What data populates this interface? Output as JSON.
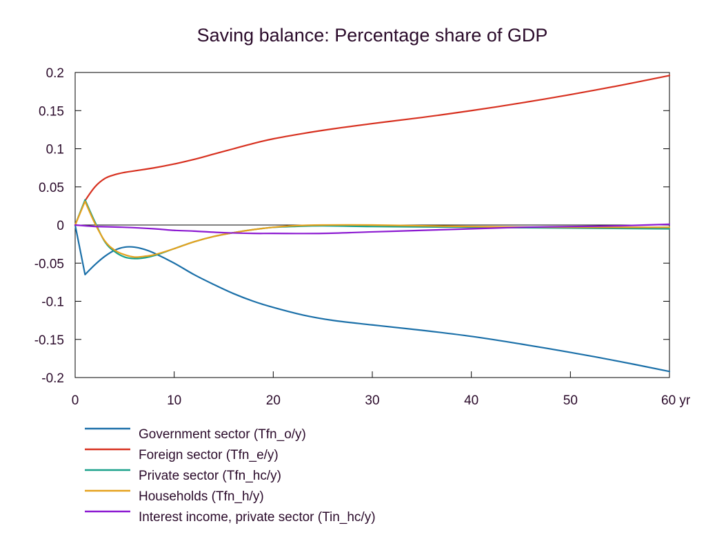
{
  "chart_data": {
    "type": "line",
    "title": "Saving balance: Percentage share of GDP",
    "xlim": [
      0,
      60
    ],
    "ylim": [
      -0.2,
      0.2
    ],
    "xticks": [
      0,
      10,
      20,
      30,
      40,
      50,
      60
    ],
    "xtick_labels": [
      "0",
      "10",
      "20",
      "30",
      "40",
      "50",
      "60 yr"
    ],
    "yticks": [
      0.2,
      0.15,
      0.1,
      0.05,
      0,
      -0.05,
      -0.1,
      -0.15,
      -0.2
    ],
    "ytick_labels": [
      "0.2",
      "0.15",
      "0.1",
      "0.05",
      "0",
      "-0.05",
      "-0.1",
      "-0.15",
      "-0.2"
    ],
    "grid": false,
    "legend_position": "bottom",
    "series": [
      {
        "name": "Government sector (Tfn_o/y)",
        "color": "#1a6fa8",
        "x": [
          0,
          1,
          2,
          3,
          4,
          5,
          6,
          7,
          8,
          10,
          12,
          14,
          16,
          18,
          20,
          23,
          26,
          30,
          35,
          40,
          45,
          50,
          55,
          60
        ],
        "y": [
          0,
          -0.065,
          -0.052,
          -0.041,
          -0.033,
          -0.029,
          -0.029,
          -0.032,
          -0.037,
          -0.05,
          -0.065,
          -0.078,
          -0.09,
          -0.1,
          -0.108,
          -0.118,
          -0.125,
          -0.131,
          -0.138,
          -0.146,
          -0.156,
          -0.167,
          -0.179,
          -0.192
        ]
      },
      {
        "name": "Foreign sector (Tfn_e/y)",
        "color": "#d7301f",
        "x": [
          0,
          1,
          2,
          3,
          4,
          5,
          6,
          8,
          10,
          12,
          14,
          16,
          18,
          20,
          23,
          26,
          30,
          35,
          40,
          45,
          50,
          55,
          60
        ],
        "y": [
          0,
          0.032,
          0.05,
          0.061,
          0.066,
          0.069,
          0.071,
          0.075,
          0.08,
          0.086,
          0.093,
          0.1,
          0.107,
          0.113,
          0.12,
          0.126,
          0.133,
          0.141,
          0.15,
          0.16,
          0.171,
          0.183,
          0.196
        ]
      },
      {
        "name": "Private sector (Tfn_hc/y)",
        "color": "#18a08a",
        "x": [
          0,
          1,
          2,
          3,
          4,
          5,
          6,
          7,
          8,
          10,
          12,
          14,
          16,
          18,
          20,
          22,
          25,
          30,
          40,
          50,
          60
        ],
        "y": [
          0,
          0.033,
          0.004,
          -0.022,
          -0.035,
          -0.042,
          -0.044,
          -0.043,
          -0.04,
          -0.031,
          -0.022,
          -0.015,
          -0.01,
          -0.006,
          -0.003,
          -0.002,
          -0.001,
          -0.002,
          -0.003,
          -0.004,
          -0.005
        ]
      },
      {
        "name": "Households (Tfn_h/y)",
        "color": "#e5a11c",
        "x": [
          0,
          1,
          2,
          3,
          4,
          5,
          6,
          7,
          8,
          10,
          12,
          14,
          16,
          18,
          20,
          22,
          25,
          30,
          40,
          50,
          60
        ],
        "y": [
          0,
          0.031,
          0.002,
          -0.021,
          -0.033,
          -0.039,
          -0.042,
          -0.041,
          -0.039,
          -0.031,
          -0.022,
          -0.015,
          -0.01,
          -0.006,
          -0.003,
          -0.001,
          0,
          0,
          -0.002,
          -0.003,
          -0.003
        ]
      },
      {
        "name": "Interest income, private sector (Tin_hc/y)",
        "color": "#8c1ad1",
        "x": [
          0,
          2,
          5,
          8,
          10,
          12,
          15,
          18,
          20,
          25,
          30,
          35,
          40,
          45,
          50,
          55,
          60
        ],
        "y": [
          0,
          -0.002,
          -0.003,
          -0.005,
          -0.007,
          -0.008,
          -0.01,
          -0.011,
          -0.011,
          -0.011,
          -0.009,
          -0.007,
          -0.005,
          -0.003,
          -0.002,
          -0.001,
          0.001
        ]
      }
    ]
  }
}
